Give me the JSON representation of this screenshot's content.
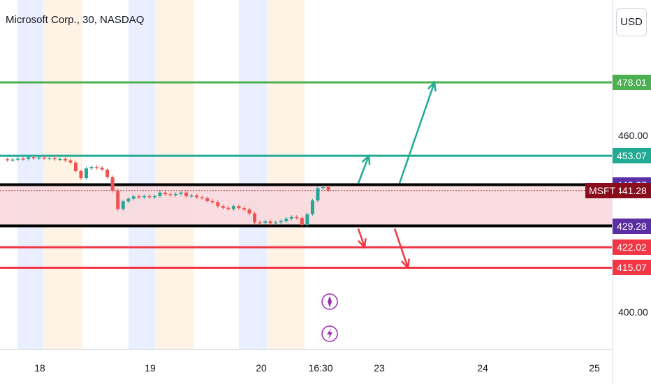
{
  "header": {
    "title": "Microsoft Corp., 30, NASDAQ",
    "currency": "USD"
  },
  "chart_data": {
    "type": "candlestick",
    "title": "Microsoft Corp., 30, NASDAQ",
    "symbol": "MSFT",
    "currency": "USD",
    "y_ticks": [
      "460.00",
      "400.00"
    ],
    "x_ticks": [
      "18",
      "19",
      "20",
      "16:30",
      "23",
      "24",
      "25"
    ],
    "last_price": 441.28,
    "levels": [
      {
        "label": "478.01",
        "value": 478.01,
        "color": "#4caf50"
      },
      {
        "label": "453.07",
        "value": 453.07,
        "color": "#22ab94"
      },
      {
        "label": "443.27",
        "value": 443.27,
        "color": "#5b2fa3"
      },
      {
        "label": "441.28",
        "value": 441.28,
        "color": "#880e1e",
        "tag": "MSFT"
      },
      {
        "label": "429.28",
        "value": 429.28,
        "color": "#5b2fa3"
      },
      {
        "label": "422.02",
        "value": 422.02,
        "color": "#f23645"
      },
      {
        "label": "415.07",
        "value": 415.07,
        "color": "#f23645"
      }
    ],
    "range_zone": {
      "from": 429.28,
      "to": 443.27
    },
    "price_path": [
      451.9,
      451.7,
      451.8,
      452.1,
      452.0,
      452.6,
      452.3,
      452.5,
      452.2,
      452.3,
      451.9,
      452.0,
      451.5,
      450.8,
      447.9,
      445.5,
      448.8,
      449.3,
      449.0,
      448.4,
      445.8,
      441.2,
      435.0,
      437.6,
      438.5,
      439.3,
      439.0,
      439.4,
      439.0,
      439.4,
      440.6,
      440.0,
      439.8,
      440.1,
      440.6,
      439.4,
      439.6,
      439.0,
      438.7,
      437.7,
      437.4,
      436.0,
      435.4,
      435.0,
      436.0,
      435.3,
      434.8,
      433.5,
      430.5,
      430.3,
      430.8,
      430.2,
      430.5,
      430.9,
      431.7,
      432.3,
      432.0,
      429.6,
      433.2,
      437.9,
      442.1,
      442.5,
      441.3
    ],
    "arrows": [
      {
        "direction": "up",
        "color": "#22ab94",
        "from": 443.27,
        "to": 453.07
      },
      {
        "direction": "up",
        "color": "#22ab94",
        "from": 443.27,
        "to": 478.01
      },
      {
        "direction": "down",
        "color": "#f23645",
        "from": 429.28,
        "to": 422.02
      },
      {
        "direction": "down",
        "color": "#f23645",
        "from": 429.28,
        "to": 415.07
      }
    ],
    "icons": [
      "diamond-icon",
      "lightning-icon"
    ],
    "colors": {
      "up": "#26a69a",
      "down": "#ef5350",
      "session_blue": "#e9efff",
      "session_orange": "#fff3e6"
    }
  }
}
